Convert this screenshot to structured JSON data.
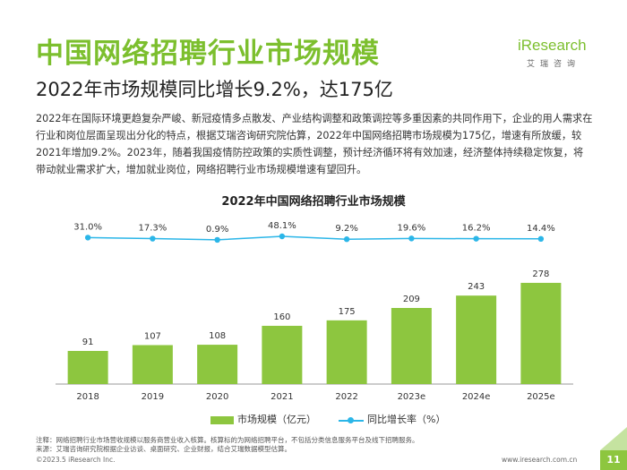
{
  "header": {
    "title": "中国网络招聘行业市场规模",
    "subtitle": "2022年市场规模同比增长9.2%，达175亿",
    "logo_text": "iResearch",
    "logo_sub": "艾瑞咨询"
  },
  "description": "2022年在国际环境更趋复杂严峻、新冠疫情多点散发、产业结构调整和政策调控等多重因素的共同作用下，企业的用人需求在行业和岗位层面呈现出分化的特点，根据艾瑞咨询研究院估算，2022年中国网络招聘市场规模为175亿，增速有所放缓，较2021年增加9.2%。2023年，随着我国疫情防控政策的实质性调整，预计经济循环将有效加速，经济整体持续稳定恢复，将带动就业需求扩大，增加就业岗位，网络招聘行业市场规模增速有望回升。",
  "chart_data": {
    "type": "bar",
    "title": "2022年中国网络招聘行业市场规模",
    "categories": [
      "2018",
      "2019",
      "2020",
      "2021",
      "2022",
      "2023e",
      "2024e",
      "2025e"
    ],
    "series": [
      {
        "name": "市场规模（亿元）",
        "type": "bar",
        "color": "#8dc63f",
        "values": [
          91,
          107,
          108,
          160,
          175,
          209,
          243,
          278
        ]
      },
      {
        "name": "同比增长率（%）",
        "type": "line",
        "color": "#2bb6e8",
        "values": [
          31.0,
          17.3,
          0.9,
          48.1,
          9.2,
          19.6,
          16.2,
          14.4
        ],
        "labels": [
          "31.0%",
          "17.3%",
          "0.9%",
          "48.1%",
          "9.2%",
          "19.6%",
          "16.2%",
          "14.4%"
        ]
      }
    ],
    "ylim": [
      0,
      300
    ]
  },
  "footer": {
    "notes": [
      "注释：网络招聘行业市场营收规模以服务商营业收入核算。核算标的为网络招聘平台，不包括分类信息服务平台及线下招聘服务。",
      "来源：艾瑞咨询研究院根据企业访谈、桌面研究、企业财报，结合艾瑞数据模型估算。"
    ],
    "copyright": "©2023.5 iResearch Inc.",
    "website": "www.iresearch.com.cn",
    "page_number": "11"
  }
}
